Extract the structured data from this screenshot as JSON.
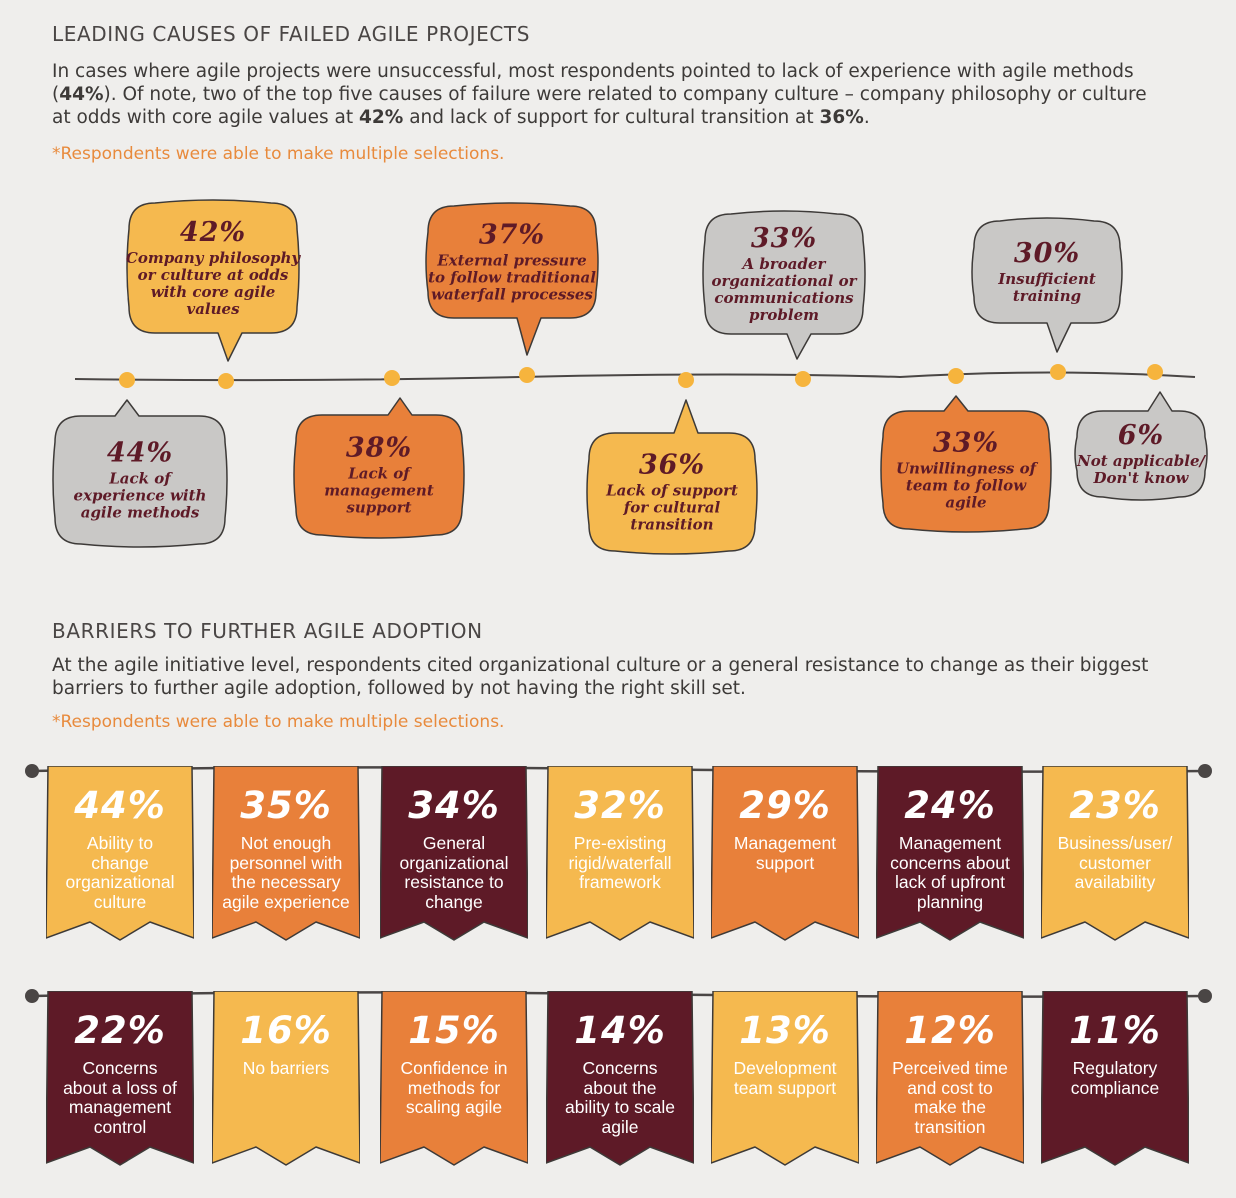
{
  "section1": {
    "title": "LEADING CAUSES OF FAILED AGILE PROJECTS",
    "body_parts": [
      "In cases where agile projects were unsuccessful, most respondents pointed to lack of experience with agile methods (",
      "44%",
      "). Of note, two of the top five causes of failure were related to company culture – company philosophy or culture at odds with core agile values at ",
      "42%",
      " and lack of support for cultural transition at ",
      "36%",
      "."
    ],
    "note": "*Respondents were able to make multiple selections."
  },
  "section2": {
    "title": "BARRIERS TO FURTHER AGILE ADOPTION",
    "body": "At the agile initiative level, respondents cited organizational culture or a general resistance to change as their biggest barriers to further agile adoption, followed by not having the right skill set.",
    "note": "*Respondents were able to make multiple selections."
  },
  "colors": {
    "yellow": "#f5b94f",
    "orange": "#e8803a",
    "maroon": "#5e1a27",
    "gray": "#c9c8c6",
    "dot": "#f6b43d",
    "text_dark": "#5e1a27"
  },
  "chart_data": [
    {
      "type": "bar",
      "title": "LEADING CAUSES OF FAILED AGILE PROJECTS",
      "categories": [
        "Lack of experience with agile methods",
        "Company philosophy or culture at odds with core agile values",
        "Lack of management support",
        "External pressure to follow traditional waterfall processes",
        "Lack of support for cultural transition",
        "A broader organizational or communications problem",
        "Unwillingness of team to follow agile",
        "Insufficient training",
        "Not applicable/ Don't know"
      ],
      "values": [
        44,
        42,
        38,
        37,
        36,
        33,
        33,
        30,
        6
      ],
      "items": [
        {
          "pct": "44%",
          "label_lines": [
            "Lack of",
            "experience with",
            "agile methods"
          ],
          "color": "gray"
        },
        {
          "pct": "42%",
          "label_lines": [
            "Company philosophy",
            "or culture at odds",
            "with core agile",
            "values"
          ],
          "color": "yellow"
        },
        {
          "pct": "38%",
          "label_lines": [
            "Lack of",
            "management",
            "support"
          ],
          "color": "orange"
        },
        {
          "pct": "37%",
          "label_lines": [
            "External pressure",
            "to follow traditional",
            "waterfall processes"
          ],
          "color": "orange"
        },
        {
          "pct": "36%",
          "label_lines": [
            "Lack of support",
            "for cultural",
            "transition"
          ],
          "color": "yellow"
        },
        {
          "pct": "33%",
          "label_lines": [
            "A broader",
            "organizational or",
            "communications",
            "problem"
          ],
          "color": "gray"
        },
        {
          "pct": "33%",
          "label_lines": [
            "Unwillingness of",
            "team to follow",
            "agile"
          ],
          "color": "orange"
        },
        {
          "pct": "30%",
          "label_lines": [
            "Insufficient",
            "training"
          ],
          "color": "gray"
        },
        {
          "pct": "6%",
          "label_lines": [
            "Not applicable/",
            "Don't know"
          ],
          "color": "gray"
        }
      ]
    },
    {
      "type": "bar",
      "title": "BARRIERS TO FURTHER AGILE ADOPTION",
      "categories": [
        "Ability to change organizational culture",
        "Not enough personnel with the necessary agile experience",
        "General organizational resistance to change",
        "Pre-existing rigid/waterfall framework",
        "Management support",
        "Management concerns about lack of upfront planning",
        "Business/user/ customer availability",
        "Concerns about a loss of management control",
        "No barriers",
        "Confidence in methods for scaling agile",
        "Concerns about the ability to scale agile",
        "Development team support",
        "Perceived time and cost to make the transition",
        "Regulatory compliance"
      ],
      "values": [
        44,
        35,
        34,
        32,
        29,
        24,
        23,
        22,
        16,
        15,
        14,
        13,
        12,
        11
      ],
      "rows": [
        [
          {
            "pct": "44%",
            "label_lines": [
              "Ability to",
              "change",
              "organizational",
              "culture"
            ],
            "color": "yellow"
          },
          {
            "pct": "35%",
            "label_lines": [
              "Not enough",
              "personnel with",
              "the necessary",
              "agile experience"
            ],
            "color": "orange"
          },
          {
            "pct": "34%",
            "label_lines": [
              "General",
              "organizational",
              "resistance to",
              "change"
            ],
            "color": "maroon"
          },
          {
            "pct": "32%",
            "label_lines": [
              "Pre-existing",
              "rigid/waterfall",
              "framework"
            ],
            "color": "yellow"
          },
          {
            "pct": "29%",
            "label_lines": [
              "Management",
              "support"
            ],
            "color": "orange"
          },
          {
            "pct": "24%",
            "label_lines": [
              "Management",
              "concerns about",
              "lack of upfront",
              "planning"
            ],
            "color": "maroon"
          },
          {
            "pct": "23%",
            "label_lines": [
              "Business/user/",
              "customer",
              "availability"
            ],
            "color": "yellow"
          }
        ],
        [
          {
            "pct": "22%",
            "label_lines": [
              "Concerns",
              "about a loss of",
              "management",
              "control"
            ],
            "color": "maroon"
          },
          {
            "pct": "16%",
            "label_lines": [
              "No barriers"
            ],
            "color": "yellow"
          },
          {
            "pct": "15%",
            "label_lines": [
              "Confidence in",
              "methods for",
              "scaling agile"
            ],
            "color": "orange"
          },
          {
            "pct": "14%",
            "label_lines": [
              "Concerns",
              "about the",
              "ability to scale",
              "agile"
            ],
            "color": "maroon"
          },
          {
            "pct": "13%",
            "label_lines": [
              "Development",
              "team support"
            ],
            "color": "yellow"
          },
          {
            "pct": "12%",
            "label_lines": [
              "Perceived time",
              "and cost to",
              "make the",
              "transition"
            ],
            "color": "orange"
          },
          {
            "pct": "11%",
            "label_lines": [
              "Regulatory",
              "compliance"
            ],
            "color": "maroon"
          }
        ]
      ]
    }
  ]
}
